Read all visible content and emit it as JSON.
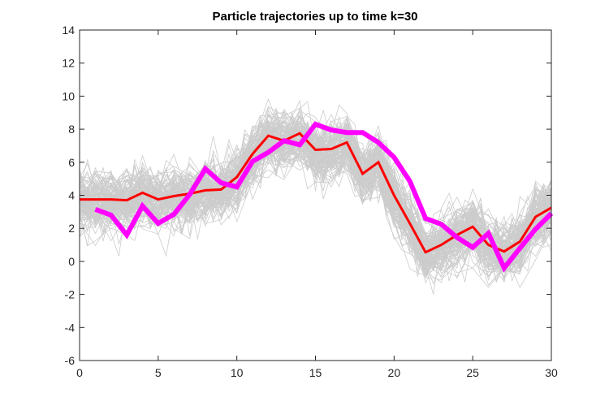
{
  "chart_data": {
    "type": "line",
    "title": "Particle trajectories up to time k=30",
    "xlabel": "",
    "ylabel": "",
    "xlim": [
      0,
      30
    ],
    "ylim": [
      -6,
      14
    ],
    "xticks": [
      0,
      5,
      10,
      15,
      20,
      25,
      30
    ],
    "yticks": [
      -6,
      -4,
      -2,
      0,
      2,
      4,
      6,
      8,
      10,
      12,
      14
    ],
    "grid": false,
    "legend": "none",
    "colors": {
      "particles": "#cccccc",
      "red_series": "#ff0000",
      "magenta_series": "#ff00ff",
      "axes": "#262626"
    },
    "series": [
      {
        "key": "red",
        "color": "#ff0000",
        "x": [
          0,
          1,
          2,
          3,
          4,
          5,
          6,
          7,
          8,
          9,
          10,
          11,
          12,
          13,
          14,
          15,
          16,
          17,
          18,
          19,
          20,
          21,
          22,
          23,
          24,
          25,
          26,
          27,
          28,
          29,
          30
        ],
        "values": [
          3.75,
          3.75,
          3.75,
          3.7,
          4.15,
          3.75,
          3.95,
          4.1,
          4.3,
          4.35,
          5.1,
          6.5,
          7.6,
          7.3,
          7.75,
          6.75,
          6.8,
          7.2,
          5.3,
          6.0,
          4.0,
          2.3,
          0.55,
          1.0,
          1.6,
          2.1,
          1.0,
          0.6,
          1.2,
          2.7,
          3.25
        ]
      },
      {
        "key": "magenta",
        "color": "#ff00ff",
        "x": [
          1,
          2,
          3,
          4,
          5,
          6,
          7,
          8,
          9,
          10,
          11,
          12,
          13,
          14,
          15,
          16,
          17,
          18,
          19,
          20,
          21,
          22,
          23,
          24,
          25,
          26,
          27,
          28,
          29,
          30
        ],
        "values": [
          3.15,
          2.8,
          1.6,
          3.35,
          2.3,
          2.85,
          4.05,
          5.6,
          4.75,
          4.5,
          6.05,
          6.6,
          7.3,
          7.05,
          8.3,
          7.95,
          7.8,
          7.8,
          7.2,
          6.3,
          4.85,
          2.6,
          2.25,
          1.45,
          0.85,
          1.7,
          -0.4,
          0.8,
          1.95,
          2.9
        ]
      }
    ],
    "particle_cloud": {
      "count": 120,
      "color": "#cccccc",
      "x_range": [
        0,
        30
      ],
      "mean_path": "red"
    }
  }
}
